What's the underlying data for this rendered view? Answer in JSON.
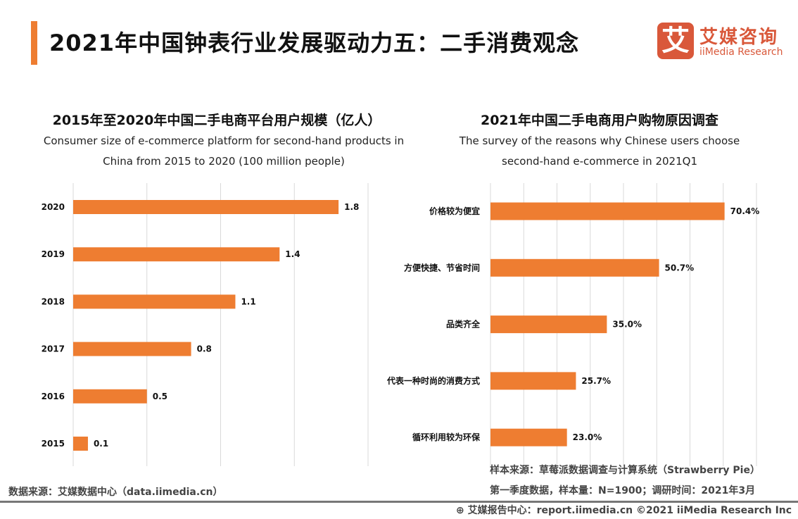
{
  "header": {
    "title": "2021年中国钟表行业发展驱动力五：二手消费观念",
    "logo_cn": "艾媒咨询",
    "logo_en": "iiMedia Research",
    "logo_mark": "艾"
  },
  "colors": {
    "accent": "#ee7d31",
    "bar": "#ee7d31",
    "logo": "#d9583a",
    "grid": "#d9d9d9"
  },
  "chart_data": [
    {
      "type": "bar",
      "orientation": "horizontal",
      "title": "2015年至2020年中国二手电商平台用户规模（亿人）",
      "subtitle": "Consumer size of e-commerce platform for second-hand products in China from 2015 to 2020 (100 million people)",
      "categories": [
        "2020",
        "2019",
        "2018",
        "2017",
        "2016",
        "2015"
      ],
      "values": [
        1.8,
        1.4,
        1.1,
        0.8,
        0.5,
        0.1
      ],
      "labels": [
        "1.8",
        "1.4",
        "1.1",
        "0.8",
        "0.5",
        "0.1"
      ],
      "xlim": [
        0,
        2
      ],
      "grid": true
    },
    {
      "type": "bar",
      "orientation": "horizontal",
      "title": "2021年中国二手电商用户购物原因调查",
      "subtitle": "The survey of the reasons why Chinese users choose second-hand e-commerce in 2021Q1",
      "categories": [
        "价格较为便宜",
        "方便快捷、节省时间",
        "品类齐全",
        "代表一种时尚的消费方式",
        "循环利用较为环保"
      ],
      "values": [
        70.4,
        50.7,
        35.0,
        25.7,
        23.0
      ],
      "labels": [
        "70.4%",
        "50.7%",
        "35.0%",
        "25.7%",
        "23.0%"
      ],
      "xlim": [
        0,
        80
      ],
      "unit": "%",
      "grid": true
    }
  ],
  "footer": {
    "source_left": "数据来源：艾媒数据中心（data.iimedia.cn）",
    "sample_source": "样本来源：草莓派数据调查与计算系统（Strawberry Pie）",
    "sample_info": "第一季度数据，样本量：N=1900；调研时间：2021年3月",
    "report": "艾媒报告中心：report.iimedia.cn   ©2021  iiMedia Research  Inc"
  }
}
